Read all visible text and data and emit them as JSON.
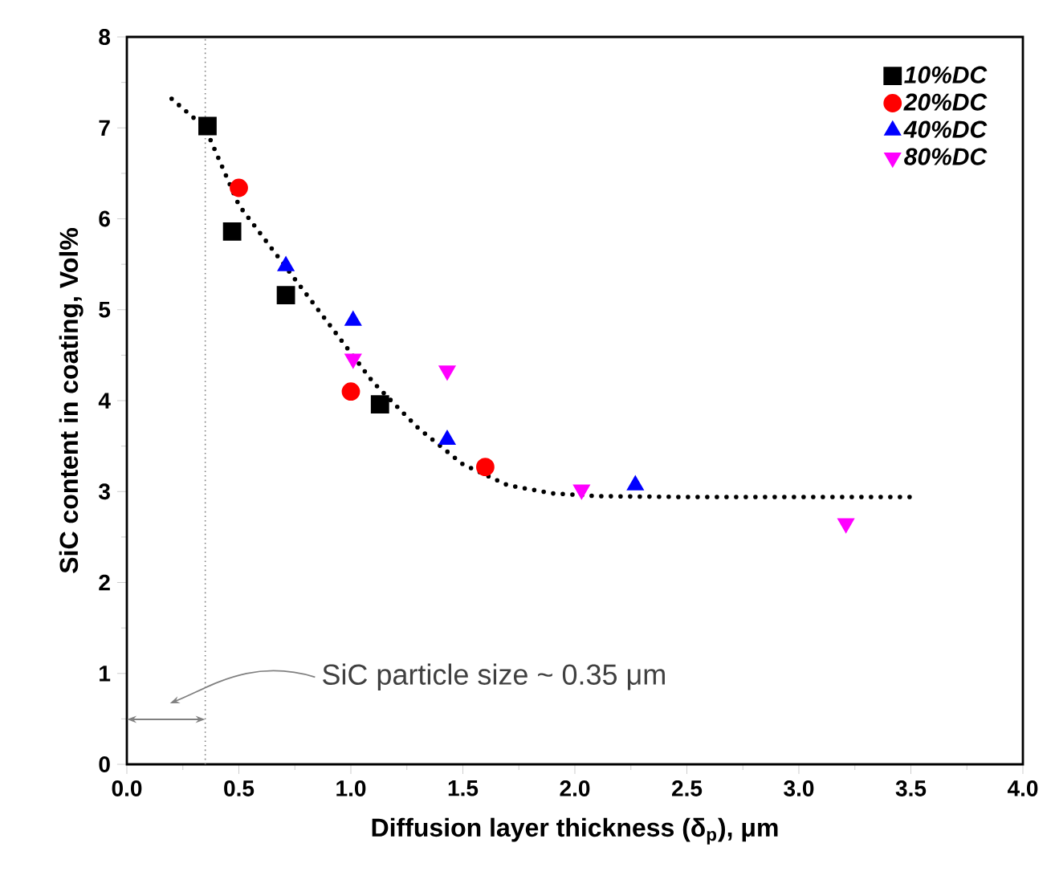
{
  "chart_data": {
    "type": "scatter",
    "xlabel": "Diffusion layer thickness (δ$_{p}$), μm",
    "ylabel": "SiC content in coating, Vol%",
    "xlim": [
      0,
      4
    ],
    "ylim": [
      0,
      8
    ],
    "xticks": [
      {
        "value": 0,
        "label": "0.0"
      },
      {
        "value": 0.5,
        "label": "0.5"
      },
      {
        "value": 1,
        "label": "1.0"
      },
      {
        "value": 1.5,
        "label": "1.5"
      },
      {
        "value": 2,
        "label": "2.0"
      },
      {
        "value": 2.5,
        "label": "2.5"
      },
      {
        "value": 3,
        "label": "3.0"
      },
      {
        "value": 3.5,
        "label": "3.5"
      },
      {
        "value": 4,
        "label": "4.0"
      }
    ],
    "yticks": [
      0,
      1,
      2,
      3,
      4,
      5,
      6,
      7,
      8
    ],
    "legend": "top right",
    "grid": false,
    "series": [
      {
        "name": "10%DC",
        "color": "#000000",
        "marker": "square",
        "x": [
          0.36,
          0.47,
          0.71,
          1.13
        ],
        "values": [
          7.02,
          5.86,
          5.16,
          3.96
        ]
      },
      {
        "name": "20%DC",
        "color": "#ff0000",
        "marker": "circle",
        "x": [
          0.5,
          1.0,
          1.6
        ],
        "values": [
          6.34,
          4.1,
          3.27
        ]
      },
      {
        "name": "40%DC",
        "color": "#0000ff",
        "marker": "triangle",
        "x": [
          0.71,
          1.01,
          1.43,
          2.27
        ],
        "values": [
          5.48,
          4.88,
          3.57,
          3.07
        ]
      },
      {
        "name": "80%DC",
        "color": "#ff00ff",
        "marker": "triangle-down",
        "x": [
          1.01,
          1.43,
          2.03,
          3.21
        ],
        "values": [
          4.46,
          4.33,
          3.02,
          2.65
        ]
      },
      {
        "type": "line",
        "color": "#000000",
        "marker": "none",
        "line_style": "dotted",
        "x": [
          0.2,
          0.35,
          0.5,
          0.7,
          0.9,
          1.1,
          1.3,
          1.5,
          1.7,
          1.9,
          2.1,
          2.5,
          3.0,
          3.5
        ],
        "values": [
          7.32,
          7.0,
          6.15,
          5.5,
          4.85,
          4.2,
          3.7,
          3.3,
          3.07,
          2.98,
          2.95,
          2.94,
          2.94,
          2.94
        ]
      }
    ],
    "ref_lines": [
      {
        "axis": "x",
        "value": 0.35,
        "color": "#808080",
        "line_style": "dotted"
      }
    ],
    "annotations": [
      "SiC particle size ~ 0.35 μm"
    ]
  }
}
